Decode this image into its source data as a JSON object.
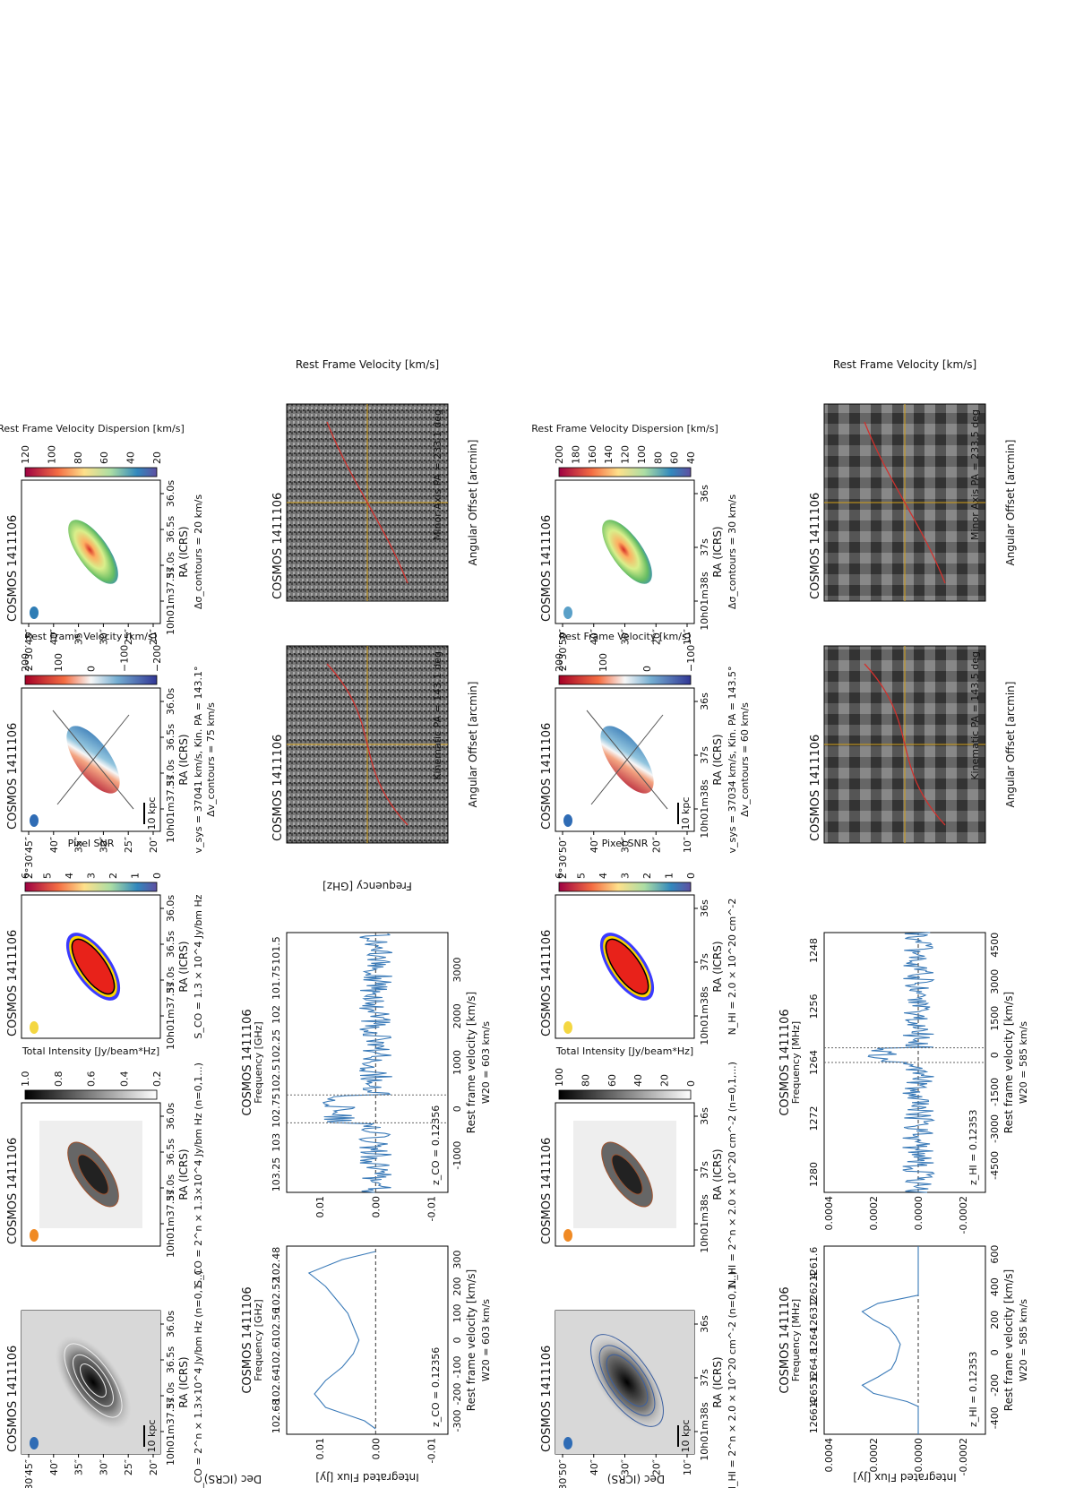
{
  "source": "COSMOS 1411106",
  "labels": {
    "dec": "Dec (ICRS)",
    "ra": "RA (ICRS)",
    "flux": "Integrated Flux [Jy]",
    "rest_vel": "Rest frame velocity [km/s]",
    "freq_mhz": "Frequency [MHz]",
    "freq_ghz": "Frequency [GHz]",
    "ang_offset": "Angular Offset [arcmin]",
    "rfv": "Rest Frame Velocity [km/s]",
    "scale_bar": "10 kpc"
  },
  "co": {
    "ra_ticks": [
      "10h01m37.5s",
      "37.0s",
      "36.5s",
      "36.0s"
    ],
    "dec_ticks": [
      "2°30′45″",
      "40″",
      "35″",
      "30″",
      "25″",
      "20″"
    ],
    "optical": {
      "caption": "S_CO = 2^n × 1.3×10^4 Jy/bm Hz (n=0,1...)"
    },
    "intensity": {
      "caption": "S_CO = 2^n × 1.3×10^4 Jy/bm Hz (n=0,1...)",
      "cbar_label": "Total Intensity [Jy/beam*Hz]",
      "cbar_ticks": [
        "1.0",
        "0.8",
        "0.6",
        "0.4",
        "0.2"
      ]
    },
    "snr": {
      "caption": "S_CO = 1.3 × 10^4 Jy/bm Hz",
      "cbar_label": "Pixel SNR",
      "cbar_ticks": [
        "6",
        "5",
        "4",
        "3",
        "2",
        "1",
        "0"
      ]
    },
    "velocity": {
      "caption": "v_sys = 37041 km/s, Kin. PA = 143.1°",
      "contours": "Δv_contours = 75 km/s",
      "cbar_label": "Rest Frame Velocity [km/s]",
      "cbar_ticks": [
        "200",
        "100",
        "0",
        "−100",
        "−200"
      ]
    },
    "dispersion": {
      "contours": "Δσ_contours = 20 km/s",
      "cbar_label": "Rest Frame Velocity Dispersion [km/s]",
      "cbar_ticks": [
        "120",
        "100",
        "80",
        "60",
        "40",
        "20"
      ]
    },
    "spec_small": {
      "z": "z_CO = 0.12356",
      "w": "W20 = 603 km/s"
    },
    "spec_large": {
      "z": "z_CO = 0.12356",
      "w": "W20 = 603 km/s"
    },
    "pv_kin": "Kinematic PA = 143.1 deg",
    "pv_min": "Minor Axis PA = 233.1 deg"
  },
  "hi": {
    "ra_ticks": [
      "10h01m38s",
      "37s",
      "36s"
    ],
    "dec_ticks": [
      "2°30′50″",
      "40″",
      "30″",
      "20″",
      "10″"
    ],
    "optical": {
      "caption": "N_HI = 2^n × 2.0 × 10^20 cm^-2 (n=0,1...)"
    },
    "intensity": {
      "caption": "N_HI = 2^n × 2.0 × 10^20 cm^-2 (n=0,1,...)",
      "cbar_label": "Total Intensity [Jy/beam*Hz]",
      "cbar_ticks": [
        "100",
        "80",
        "60",
        "40",
        "20",
        "0"
      ]
    },
    "snr": {
      "caption": "N_HI = 2.0 × 10^20 cm^-2",
      "cbar_label": "Pixel SNR",
      "cbar_ticks": [
        "6",
        "5",
        "4",
        "3",
        "2",
        "1",
        "0"
      ]
    },
    "velocity": {
      "caption": "v_sys = 37034 km/s, Kin. PA = 143.5°",
      "contours": "Δv_contours = 60 km/s",
      "cbar_label": "Rest Frame Velocity [km/s]",
      "cbar_ticks": [
        "200",
        "100",
        "0",
        "−100"
      ]
    },
    "dispersion": {
      "contours": "Δσ_contours = 30 km/s",
      "cbar_label": "Rest Frame Velocity Dispersion [km/s]",
      "cbar_ticks": [
        "200",
        "180",
        "160",
        "140",
        "120",
        "100",
        "80",
        "60",
        "40"
      ]
    },
    "spec_small": {
      "z": "z_HI = 0.12353",
      "w": "W20 = 585 km/s"
    },
    "spec_large": {
      "z": "z_HI = 0.12353",
      "w": "W20 = 585 km/s"
    },
    "pv_kin": "Kinematic PA = 143.5 deg",
    "pv_min": "Minor Axis PA = 233.5 deg"
  },
  "colors": {
    "spectrum": "#3a7ab8",
    "guides": "#d4a017",
    "contour_red": "#d0312d"
  },
  "chart_data": [
    {
      "type": "line",
      "name": "CO spectrum (small)",
      "xlabel": "Rest frame velocity [km/s]",
      "ylabel": "Integrated Flux [Jy]",
      "xlim": [
        -350,
        350
      ],
      "ylim": [
        -0.013,
        0.016
      ],
      "x_ticks": [
        -300,
        -200,
        -100,
        0,
        100,
        200,
        300
      ],
      "top_ticks_ghz": [
        102.68,
        102.64,
        102.6,
        102.56,
        102.52,
        102.48
      ],
      "x": [
        -330,
        -300,
        -250,
        -200,
        -150,
        -100,
        -50,
        0,
        50,
        100,
        150,
        200,
        250,
        300,
        330
      ],
      "y": [
        0.0,
        0.002,
        0.009,
        0.011,
        0.009,
        0.006,
        0.004,
        0.003,
        0.004,
        0.005,
        0.007,
        0.009,
        0.012,
        0.006,
        0.0
      ]
    },
    {
      "type": "line",
      "name": "CO spectrum (large)",
      "xlabel": "Rest frame velocity [km/s]",
      "xlim": [
        -1800,
        3800
      ],
      "ylim": [
        -0.013,
        0.016
      ],
      "x_ticks": [
        -1000,
        0,
        1000,
        2000,
        3000
      ],
      "top_ticks_ghz": [
        103.25,
        103.0,
        102.75,
        102.5,
        102.25,
        102.0,
        101.75,
        101.5
      ],
      "line_window": [
        -300,
        300
      ],
      "noise_rms": 0.003
    },
    {
      "type": "line",
      "name": "HI spectrum (small)",
      "xlabel": "Rest frame velocity [km/s]",
      "ylabel": "Integrated Flux [Jy]",
      "xlim": [
        -500,
        650
      ],
      "ylim": [
        -0.0003,
        0.00042
      ],
      "x_ticks": [
        -400,
        -200,
        0,
        200,
        400,
        600
      ],
      "top_ticks_mhz": [
        1266.4,
        1265.6,
        1264.8,
        1264.0,
        1263.2,
        1262.4,
        1261.6
      ],
      "x": [
        -500,
        -330,
        -300,
        -250,
        -200,
        -150,
        -100,
        -50,
        0,
        50,
        100,
        150,
        200,
        250,
        300,
        350,
        650
      ],
      "y": [
        0.0,
        0.0,
        5e-05,
        0.0002,
        0.00025,
        0.00018,
        0.00012,
        0.0001,
        9e-05,
        8e-05,
        0.0001,
        0.00013,
        0.0002,
        0.00025,
        0.00018,
        0.0,
        0.0
      ]
    },
    {
      "type": "line",
      "name": "HI spectrum (large)",
      "xlabel": "Rest frame velocity [km/s]",
      "xlim": [
        -5600,
        5000
      ],
      "ylim": [
        -0.0003,
        0.00042
      ],
      "x_ticks": [
        -4500,
        -3000,
        -1500,
        0,
        1500,
        3000,
        4500
      ],
      "top_ticks_mhz": [
        1280,
        1272,
        1264,
        1256,
        1248
      ],
      "line_window": [
        -300,
        300
      ],
      "noise_rms": 7e-05
    }
  ]
}
